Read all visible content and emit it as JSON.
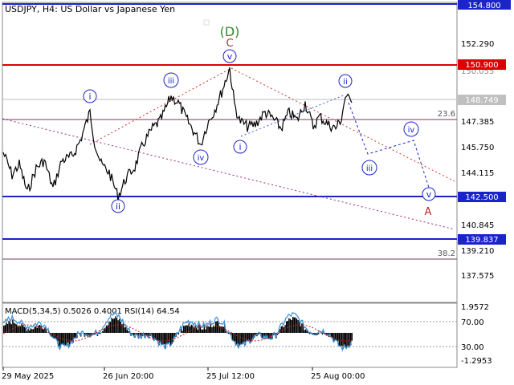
{
  "header": {
    "title": "USDJPY, H4:  US Dollar vs Japanese Yen"
  },
  "price_scale": {
    "labels": [
      "154.800",
      "152.290",
      "150.900",
      "150.055",
      "148.749",
      "147.385",
      "145.750",
      "144.115",
      "142.500",
      "140.845",
      "139.837",
      "139.210",
      "137.575"
    ]
  },
  "levels": [
    {
      "id": "blue-top",
      "price": "154.800",
      "color": "#1a24c9"
    },
    {
      "id": "red",
      "price": "150.900",
      "color": "#dd0000"
    },
    {
      "id": "current",
      "price": "148.749",
      "color": "#b0b0b0"
    },
    {
      "id": "fib-236",
      "price": "147.700",
      "label": "23.6",
      "color": "#a04060"
    },
    {
      "id": "blue-mid",
      "price": "142.500",
      "color": "#1a24c9"
    },
    {
      "id": "blue-low",
      "price": "139.837",
      "color": "#1a24c9"
    },
    {
      "id": "fib-382",
      "price": "138.700",
      "label": "38.2",
      "color": "#a04060"
    }
  ],
  "wave_labels": {
    "D": "(D)",
    "C": "C",
    "A": "A",
    "i_top": "i",
    "ii": "ii",
    "iii": "iii",
    "iv": "iv",
    "v": "v",
    "i_mid": "i",
    "ii_right": "ii",
    "iii_right": "iii",
    "iv_right": "iv",
    "v_right": "v"
  },
  "indicator": {
    "title": "MACD(5,34,5) 0.5026 0.4001 RSI(14) 64.54",
    "scale": [
      "1.9572",
      "70.00",
      "30.00",
      "-1.2953"
    ]
  },
  "time_axis": [
    "29 May 2025",
    "26 Jun 20:00",
    "25 Jul 12:00",
    "25 Aug 00:00"
  ],
  "colors": {
    "wave_blue": "#1a24c9",
    "wave_green": "#2e8b2e",
    "wave_red": "#b52a2a",
    "grid_border": "#888888"
  }
}
